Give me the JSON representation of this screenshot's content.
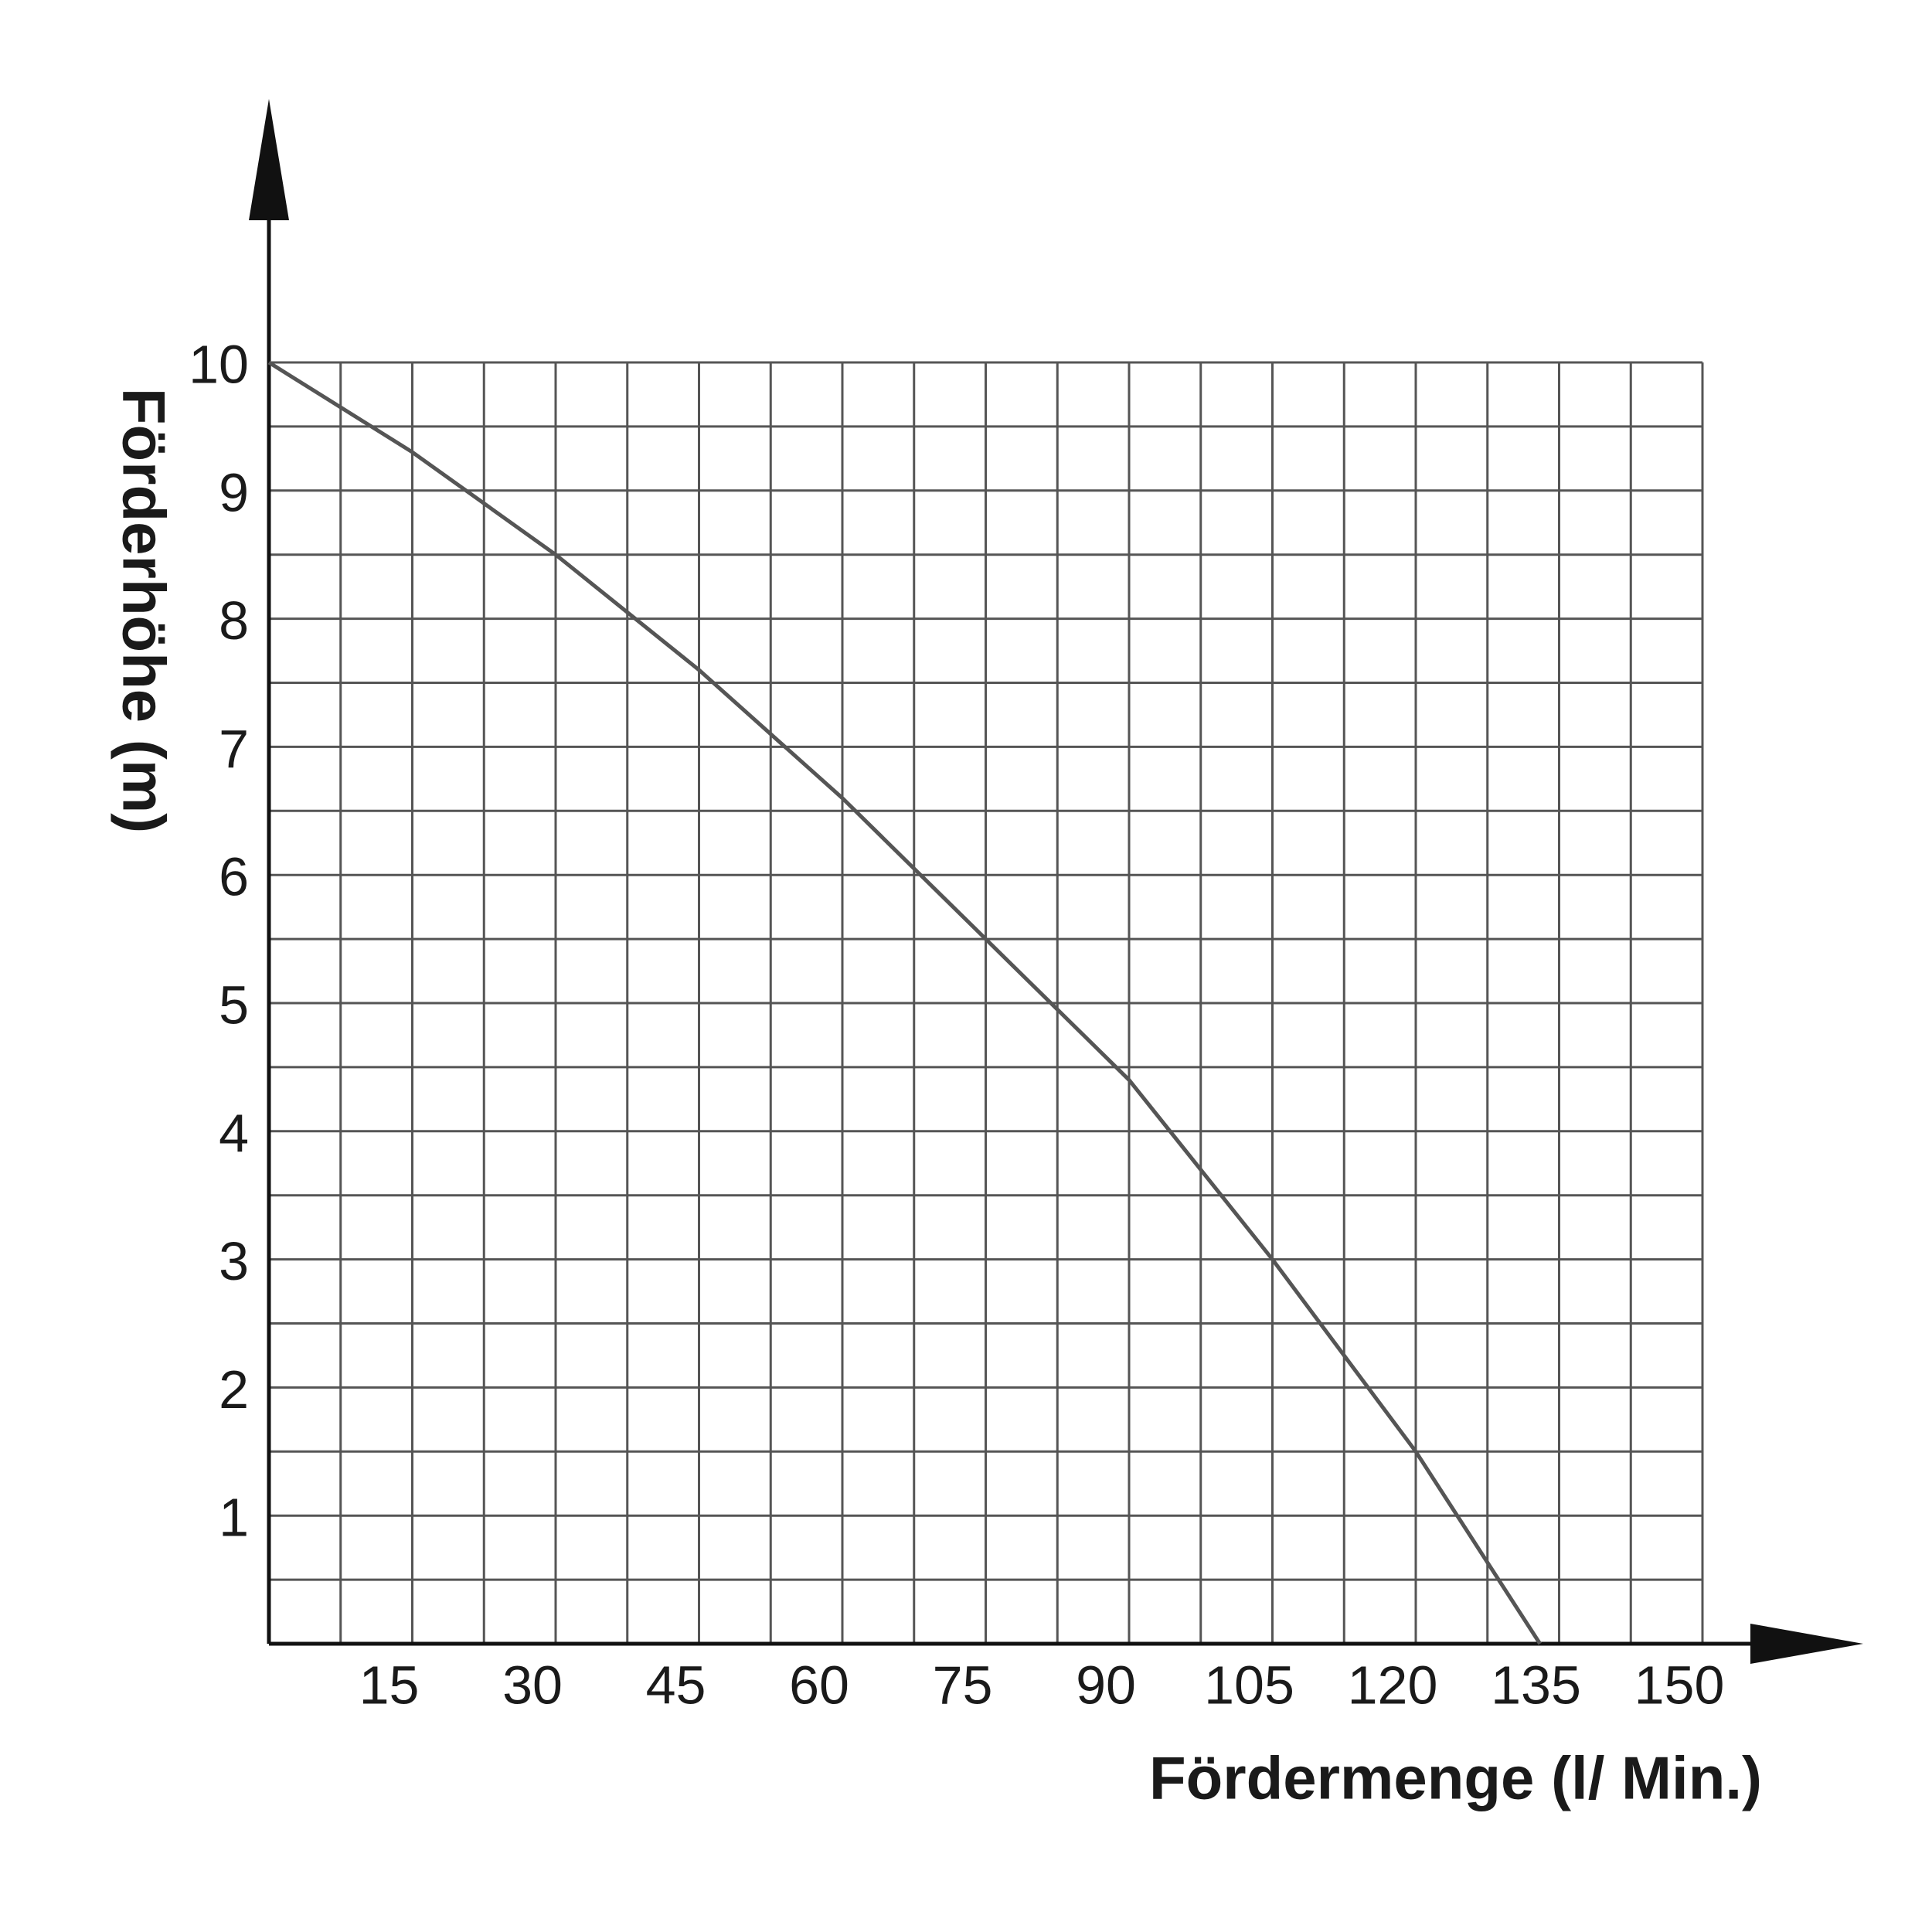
{
  "chart_data": {
    "type": "line",
    "xlabel": "Fördermenge (l/ Min.)",
    "ylabel": "Förderhöhe (m)",
    "x": [
      0,
      15,
      30,
      45,
      60,
      75,
      90,
      105,
      120,
      133
    ],
    "series": [
      {
        "color": "#555555",
        "values": [
          10,
          9.3,
          8.5,
          7.6,
          6.6,
          5.5,
          4.4,
          3.0,
          1.5,
          0
        ]
      }
    ],
    "xlim": [
      0,
      150
    ],
    "xticks": [
      15,
      30,
      45,
      60,
      75,
      90,
      105,
      120,
      135,
      150
    ],
    "ylim": [
      0,
      10
    ],
    "yticks": [
      1,
      2,
      3,
      4,
      5,
      6,
      7,
      8,
      9,
      10
    ],
    "grid": true
  }
}
